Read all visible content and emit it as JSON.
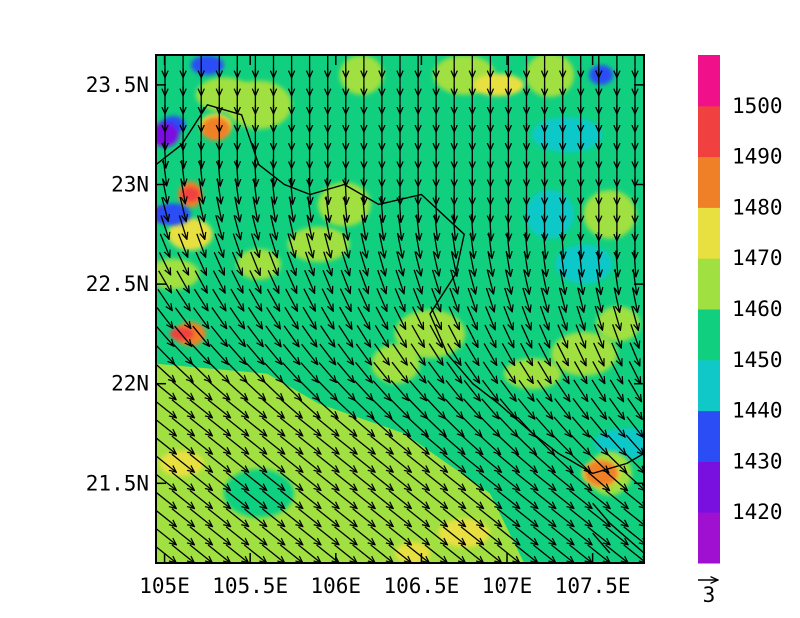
{
  "chart_data": {
    "type": "heatmap",
    "title": "",
    "xlabel": "",
    "ylabel": "",
    "x_range": [
      104.95,
      107.8
    ],
    "y_range": [
      21.1,
      23.65
    ],
    "x_ticks": [
      {
        "value": 105.0,
        "label": "105E"
      },
      {
        "value": 105.5,
        "label": "105.5E"
      },
      {
        "value": 106.0,
        "label": "106E"
      },
      {
        "value": 106.5,
        "label": "106.5E"
      },
      {
        "value": 107.0,
        "label": "107E"
      },
      {
        "value": 107.5,
        "label": "107.5E"
      }
    ],
    "y_ticks": [
      {
        "value": 21.5,
        "label": "21.5N"
      },
      {
        "value": 22.0,
        "label": "22N"
      },
      {
        "value": 22.5,
        "label": "22.5N"
      },
      {
        "value": 23.0,
        "label": "23N"
      },
      {
        "value": 23.5,
        "label": "23.5N"
      }
    ],
    "colorbar": {
      "levels": [
        1410,
        1420,
        1430,
        1440,
        1450,
        1460,
        1470,
        1480,
        1490,
        1500,
        1510
      ],
      "labels": [
        "1420",
        "1430",
        "1440",
        "1450",
        "1460",
        "1470",
        "1480",
        "1490",
        "1500"
      ],
      "colors": [
        "#a010d0",
        "#7a10e0",
        "#2a4df5",
        "#10c8c8",
        "#10d080",
        "#a0e040",
        "#e8e040",
        "#f08028",
        "#f04040",
        "#f0108a"
      ]
    },
    "vector_reference": {
      "label": "3",
      "magnitude": 3
    },
    "grid": false,
    "field_description_levels": {
      "background": 1455,
      "southwest_sector": 1465
    },
    "patches": [
      {
        "lon": 105.55,
        "lat": 22.6,
        "level": 1465
      },
      {
        "lon": 106.05,
        "lat": 22.9,
        "level": 1465
      },
      {
        "lon": 105.9,
        "lat": 22.7,
        "level": 1465
      },
      {
        "lon": 106.55,
        "lat": 22.25,
        "level": 1465
      },
      {
        "lon": 106.35,
        "lat": 22.1,
        "level": 1465
      },
      {
        "lon": 107.15,
        "lat": 22.05,
        "level": 1465
      },
      {
        "lon": 107.45,
        "lat": 22.15,
        "level": 1465
      },
      {
        "lon": 107.65,
        "lat": 22.3,
        "level": 1465
      },
      {
        "lon": 107.6,
        "lat": 22.85,
        "level": 1465
      },
      {
        "lon": 106.75,
        "lat": 23.55,
        "level": 1465
      },
      {
        "lon": 106.95,
        "lat": 23.5,
        "level": 1475
      },
      {
        "lon": 107.25,
        "lat": 23.55,
        "level": 1465
      },
      {
        "lon": 105.35,
        "lat": 23.45,
        "level": 1465
      },
      {
        "lon": 105.55,
        "lat": 23.4,
        "level": 1465
      },
      {
        "lon": 106.15,
        "lat": 23.55,
        "level": 1465
      },
      {
        "lon": 105.05,
        "lat": 22.55,
        "level": 1465
      },
      {
        "lon": 105.15,
        "lat": 22.75,
        "level": 1475
      },
      {
        "lon": 107.35,
        "lat": 23.25,
        "level": 1445
      },
      {
        "lon": 107.25,
        "lat": 22.85,
        "level": 1445
      },
      {
        "lon": 107.45,
        "lat": 22.6,
        "level": 1445
      },
      {
        "lon": 107.7,
        "lat": 21.7,
        "level": 1445
      },
      {
        "lon": 107.6,
        "lat": 21.55,
        "level": 1465
      },
      {
        "lon": 107.55,
        "lat": 21.55,
        "level": 1475
      },
      {
        "lon": 107.55,
        "lat": 21.55,
        "level": 1485
      },
      {
        "lon": 106.75,
        "lat": 21.25,
        "level": 1475
      },
      {
        "lon": 106.45,
        "lat": 21.15,
        "level": 1475
      },
      {
        "lon": 105.15,
        "lat": 22.25,
        "level": 1485
      },
      {
        "lon": 105.1,
        "lat": 22.25,
        "level": 1495
      },
      {
        "lon": 105.15,
        "lat": 22.95,
        "level": 1485
      },
      {
        "lon": 105.15,
        "lat": 22.95,
        "level": 1495
      },
      {
        "lon": 105.0,
        "lat": 22.85,
        "level": 1425
      },
      {
        "lon": 105.05,
        "lat": 22.85,
        "level": 1435
      },
      {
        "lon": 105.05,
        "lat": 23.3,
        "level": 1435
      },
      {
        "lon": 105.0,
        "lat": 23.25,
        "level": 1425
      },
      {
        "lon": 105.25,
        "lat": 23.6,
        "level": 1435
      },
      {
        "lon": 105.3,
        "lat": 23.3,
        "level": 1475
      },
      {
        "lon": 105.3,
        "lat": 23.28,
        "level": 1485
      },
      {
        "lon": 105.1,
        "lat": 21.6,
        "level": 1475
      },
      {
        "lon": 105.55,
        "lat": 21.45,
        "level": 1455
      },
      {
        "lon": 107.55,
        "lat": 23.55,
        "level": 1435
      }
    ],
    "wind_field": {
      "description": "southward flow in north, south-eastward in south-west",
      "rows_north": {
        "u": 0.0,
        "v": -3.0
      },
      "rows_south": {
        "u": 2.5,
        "v": -2.0
      }
    }
  }
}
